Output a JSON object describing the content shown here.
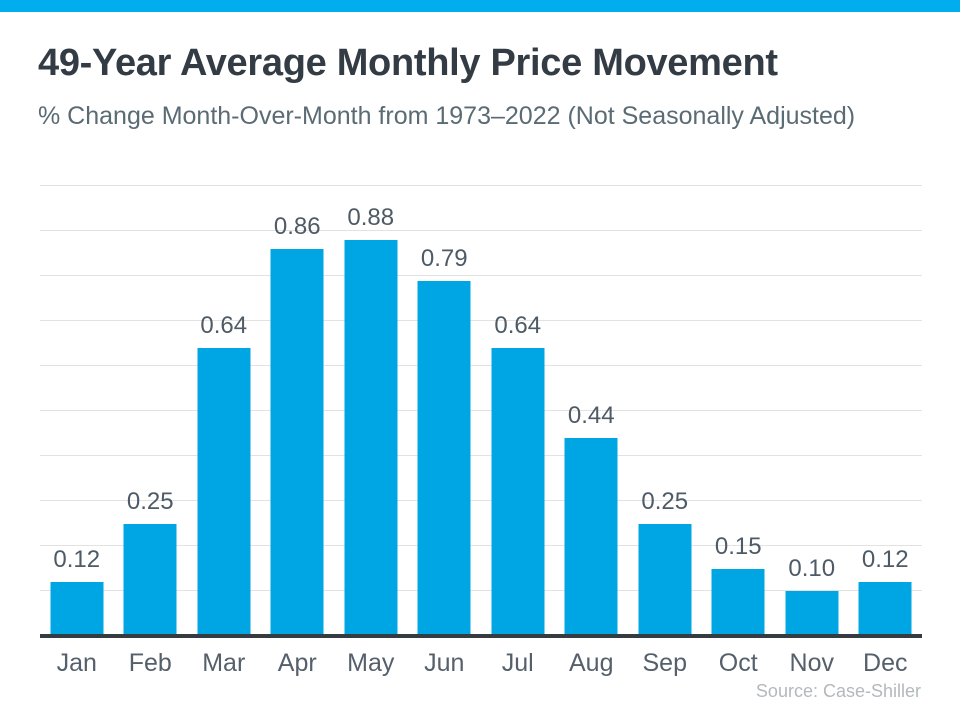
{
  "page": {
    "accent_color": "#00AEEF",
    "background_color": "#FFFFFF"
  },
  "header": {
    "title": "49-Year Average Monthly Price Movement",
    "subtitle": "% Change Month-Over-Month from 1973–2022 (Not Seasonally Adjusted)"
  },
  "chart_data": {
    "type": "bar",
    "title": "49-Year Average Monthly Price Movement",
    "subtitle": "% Change Month-Over-Month from 1973–2022 (Not Seasonally Adjusted)",
    "categories": [
      "Jan",
      "Feb",
      "Mar",
      "Apr",
      "May",
      "Jun",
      "Jul",
      "Aug",
      "Sep",
      "Oct",
      "Nov",
      "Dec"
    ],
    "values": [
      0.12,
      0.25,
      0.64,
      0.86,
      0.88,
      0.79,
      0.64,
      0.44,
      0.25,
      0.15,
      0.1,
      0.12
    ],
    "data_labels": [
      "0.12",
      "0.25",
      "0.64",
      "0.86",
      "0.88",
      "0.79",
      "0.64",
      "0.44",
      "0.25",
      "0.15",
      "0.10",
      "0.12"
    ],
    "xlabel": "",
    "ylabel": "",
    "ylim": [
      0,
      1.0
    ],
    "gridline_step": 0.1,
    "grid": "horizontal",
    "legend": "none",
    "bar_color": "#00A5E3",
    "gridline_color": "#E2E2E2",
    "axis_color": "#343B41"
  },
  "footer": {
    "source": "Source: Case-Shiller"
  }
}
